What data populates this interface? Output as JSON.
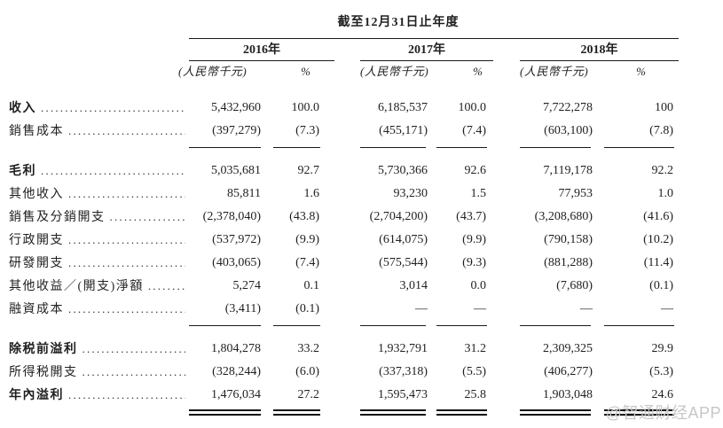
{
  "header": {
    "period_title": "截至12月31日止年度",
    "years": [
      "2016年",
      "2017年",
      "2018年"
    ],
    "unit_label": "(人民幣千元)",
    "percent_label": "%"
  },
  "rows": [
    {
      "label": "收入",
      "v": [
        "5,432,960",
        "100.0",
        "6,185,537",
        "100.0",
        "7,722,278",
        "100"
      ]
    },
    {
      "label": "銷售成本",
      "v": [
        "(397,279)",
        "(7.3)",
        "(455,171)",
        "(7.4)",
        "(603,100)",
        "(7.8)"
      ]
    },
    {
      "label": "毛利",
      "v": [
        "5,035,681",
        "92.7",
        "5,730,366",
        "92.6",
        "7,119,178",
        "92.2"
      ]
    },
    {
      "label": "其他收入",
      "v": [
        "85,811",
        "1.6",
        "93,230",
        "1.5",
        "77,953",
        "1.0"
      ]
    },
    {
      "label": "銷售及分銷開支",
      "v": [
        "(2,378,040)",
        "(43.8)",
        "(2,704,200)",
        "(43.7)",
        "(3,208,680)",
        "(41.6)"
      ]
    },
    {
      "label": "行政開支",
      "v": [
        "(537,972)",
        "(9.9)",
        "(614,075)",
        "(9.9)",
        "(790,158)",
        "(10.2)"
      ]
    },
    {
      "label": "研發開支",
      "v": [
        "(403,065)",
        "(7.4)",
        "(575,544)",
        "(9.3)",
        "(881,288)",
        "(11.4)"
      ]
    },
    {
      "label": "其他收益／(開支)淨額",
      "v": [
        "5,274",
        "0.1",
        "3,014",
        "0.0",
        "(7,680)",
        "(0.1)"
      ]
    },
    {
      "label": "融資成本",
      "v": [
        "(3,411)",
        "(0.1)",
        "—",
        "—",
        "—",
        "—"
      ]
    },
    {
      "label": "除税前溢利",
      "v": [
        "1,804,278",
        "33.2",
        "1,932,791",
        "31.2",
        "2,309,325",
        "29.9"
      ]
    },
    {
      "label": "所得税開支",
      "v": [
        "(328,244)",
        "(6.0)",
        "(337,318)",
        "(5.5)",
        "(406,277)",
        "(5.3)"
      ]
    },
    {
      "label": "年內溢利",
      "v": [
        "1,476,034",
        "27.2",
        "1,595,473",
        "25.8",
        "1,903,048",
        "24.6"
      ]
    }
  ],
  "watermark": "@智通财经APP",
  "colors": {
    "text": "#1f1f1f",
    "rule": "#1a1a1a",
    "watermark": "#c7c7c7"
  }
}
